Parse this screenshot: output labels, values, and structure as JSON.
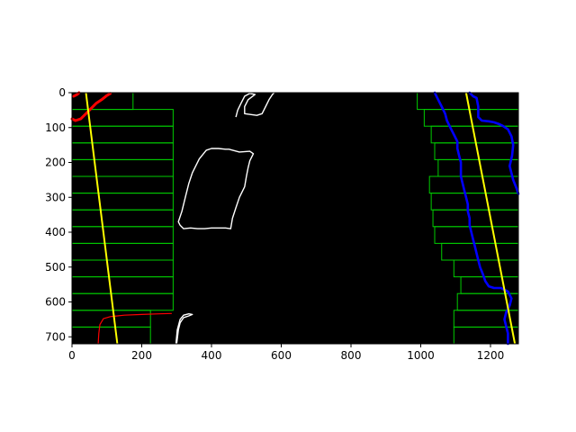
{
  "colors": {
    "background": "#000000",
    "window": "#00cc00",
    "fit_line": "#ffff00",
    "left_lane_pixels": "#ff0000",
    "right_lane_pixels": "#0000ff",
    "edges": "#ffffff",
    "axis": "#000000"
  },
  "chart_data": {
    "type": "scatter",
    "xlim": [
      0,
      1280
    ],
    "ylim": [
      720,
      0
    ],
    "x_ticks": [
      "0",
      "200",
      "400",
      "600",
      "800",
      "1000",
      "1200"
    ],
    "y_ticks": [
      "0",
      "100",
      "200",
      "300",
      "400",
      "500",
      "600",
      "700"
    ],
    "x_tick_values": [
      0,
      200,
      400,
      600,
      800,
      1000,
      1200
    ],
    "y_tick_values": [
      0,
      100,
      200,
      300,
      400,
      500,
      600,
      700
    ],
    "left_windows": [
      {
        "x1": 0,
        "x2": 175,
        "y1": 0,
        "y2": 48
      },
      {
        "x1": 0,
        "x2": 290,
        "y1": 48,
        "y2": 96
      },
      {
        "x1": 0,
        "x2": 290,
        "y1": 96,
        "y2": 144
      },
      {
        "x1": 0,
        "x2": 290,
        "y1": 144,
        "y2": 192
      },
      {
        "x1": 0,
        "x2": 290,
        "y1": 192,
        "y2": 240
      },
      {
        "x1": 0,
        "x2": 290,
        "y1": 240,
        "y2": 288
      },
      {
        "x1": 0,
        "x2": 290,
        "y1": 288,
        "y2": 336
      },
      {
        "x1": 0,
        "x2": 290,
        "y1": 336,
        "y2": 384
      },
      {
        "x1": 0,
        "x2": 290,
        "y1": 384,
        "y2": 432
      },
      {
        "x1": 0,
        "x2": 290,
        "y1": 432,
        "y2": 480
      },
      {
        "x1": 0,
        "x2": 290,
        "y1": 480,
        "y2": 528
      },
      {
        "x1": 0,
        "x2": 290,
        "y1": 528,
        "y2": 576
      },
      {
        "x1": 0,
        "x2": 290,
        "y1": 576,
        "y2": 624
      },
      {
        "x1": 0,
        "x2": 225,
        "y1": 624,
        "y2": 672
      },
      {
        "x1": 0,
        "x2": 225,
        "y1": 672,
        "y2": 720
      }
    ],
    "right_windows": [
      {
        "x1": 990,
        "x2": 1280,
        "y1": 0,
        "y2": 48
      },
      {
        "x1": 1010,
        "x2": 1280,
        "y1": 48,
        "y2": 96
      },
      {
        "x1": 1030,
        "x2": 1280,
        "y1": 96,
        "y2": 144
      },
      {
        "x1": 1040,
        "x2": 1280,
        "y1": 144,
        "y2": 192
      },
      {
        "x1": 1050,
        "x2": 1280,
        "y1": 192,
        "y2": 240
      },
      {
        "x1": 1025,
        "x2": 1280,
        "y1": 240,
        "y2": 288
      },
      {
        "x1": 1030,
        "x2": 1280,
        "y1": 288,
        "y2": 336
      },
      {
        "x1": 1035,
        "x2": 1280,
        "y1": 336,
        "y2": 384
      },
      {
        "x1": 1040,
        "x2": 1280,
        "y1": 384,
        "y2": 432
      },
      {
        "x1": 1060,
        "x2": 1280,
        "y1": 432,
        "y2": 480
      },
      {
        "x1": 1095,
        "x2": 1280,
        "y1": 480,
        "y2": 528
      },
      {
        "x1": 1115,
        "x2": 1280,
        "y1": 528,
        "y2": 576
      },
      {
        "x1": 1105,
        "x2": 1280,
        "y1": 576,
        "y2": 624
      },
      {
        "x1": 1095,
        "x2": 1280,
        "y1": 624,
        "y2": 672
      },
      {
        "x1": 1095,
        "x2": 1280,
        "y1": 672,
        "y2": 720
      }
    ],
    "left_fit": [
      [
        40,
        0
      ],
      [
        130,
        720
      ]
    ],
    "right_fit": [
      [
        1130,
        0
      ],
      [
        1270,
        720
      ]
    ],
    "left_lane_pixels": [
      [
        [
          5,
          10
        ],
        [
          15,
          5
        ],
        [
          20,
          0
        ]
      ],
      [
        [
          0,
          75
        ],
        [
          10,
          80
        ],
        [
          25,
          75
        ],
        [
          40,
          60
        ],
        [
          55,
          45
        ],
        [
          70,
          30
        ],
        [
          85,
          20
        ],
        [
          100,
          8
        ],
        [
          110,
          2
        ]
      ],
      [
        [
          75,
          720
        ],
        [
          77,
          690
        ],
        [
          80,
          665
        ],
        [
          90,
          648
        ],
        [
          110,
          642
        ],
        [
          150,
          638
        ],
        [
          200,
          636
        ],
        [
          250,
          634
        ],
        [
          285,
          633
        ]
      ]
    ],
    "right_lane_pixels": [
      [
        [
          1040,
          0
        ],
        [
          1050,
          20
        ],
        [
          1060,
          40
        ],
        [
          1070,
          60
        ],
        [
          1075,
          80
        ],
        [
          1085,
          100
        ],
        [
          1095,
          120
        ],
        [
          1105,
          140
        ],
        [
          1105,
          160
        ],
        [
          1110,
          180
        ],
        [
          1115,
          200
        ],
        [
          1115,
          220
        ],
        [
          1115,
          240
        ],
        [
          1120,
          260
        ],
        [
          1125,
          280
        ],
        [
          1130,
          300
        ],
        [
          1135,
          320
        ],
        [
          1135,
          340
        ],
        [
          1140,
          360
        ],
        [
          1140,
          380
        ],
        [
          1145,
          400
        ],
        [
          1150,
          420
        ],
        [
          1155,
          440
        ],
        [
          1160,
          460
        ],
        [
          1165,
          480
        ],
        [
          1170,
          500
        ],
        [
          1178,
          520
        ],
        [
          1185,
          540
        ],
        [
          1195,
          555
        ],
        [
          1210,
          560
        ],
        [
          1230,
          560
        ],
        [
          1250,
          570
        ],
        [
          1260,
          590
        ],
        [
          1255,
          610
        ],
        [
          1245,
          630
        ],
        [
          1240,
          650
        ],
        [
          1245,
          670
        ],
        [
          1250,
          690
        ],
        [
          1250,
          710
        ],
        [
          1250,
          720
        ]
      ],
      [
        [
          1140,
          0
        ],
        [
          1150,
          10
        ],
        [
          1160,
          15
        ],
        [
          1165,
          40
        ],
        [
          1165,
          70
        ],
        [
          1175,
          80
        ],
        [
          1195,
          82
        ],
        [
          1210,
          85
        ],
        [
          1225,
          90
        ],
        [
          1235,
          95
        ],
        [
          1250,
          105
        ],
        [
          1260,
          125
        ],
        [
          1265,
          150
        ],
        [
          1262,
          180
        ],
        [
          1255,
          210
        ],
        [
          1265,
          250
        ],
        [
          1275,
          275
        ],
        [
          1280,
          290
        ]
      ]
    ],
    "edge_contours": [
      [
        [
          300,
          720
        ],
        [
          305,
          680
        ],
        [
          310,
          660
        ],
        [
          320,
          645
        ],
        [
          335,
          640
        ],
        [
          345,
          636
        ],
        [
          335,
          634
        ],
        [
          320,
          638
        ],
        [
          310,
          650
        ],
        [
          302,
          680
        ],
        [
          298,
          720
        ]
      ],
      [
        [
          470,
          70
        ],
        [
          475,
          50
        ],
        [
          485,
          30
        ],
        [
          495,
          10
        ],
        [
          510,
          2
        ],
        [
          525,
          5
        ],
        [
          505,
          20
        ],
        [
          495,
          40
        ],
        [
          495,
          60
        ],
        [
          530,
          65
        ],
        [
          545,
          60
        ],
        [
          555,
          40
        ],
        [
          565,
          20
        ],
        [
          575,
          5
        ],
        [
          580,
          0
        ]
      ],
      [
        [
          310,
          380
        ],
        [
          305,
          370
        ],
        [
          315,
          340
        ],
        [
          325,
          300
        ],
        [
          335,
          260
        ],
        [
          345,
          230
        ],
        [
          365,
          190
        ],
        [
          385,
          165
        ],
        [
          400,
          160
        ],
        [
          420,
          160
        ],
        [
          440,
          162
        ],
        [
          450,
          162
        ],
        [
          480,
          170
        ],
        [
          510,
          168
        ],
        [
          520,
          175
        ],
        [
          510,
          195
        ],
        [
          505,
          215
        ],
        [
          500,
          240
        ],
        [
          495,
          270
        ],
        [
          480,
          300
        ],
        [
          470,
          330
        ],
        [
          460,
          360
        ],
        [
          455,
          390
        ],
        [
          440,
          388
        ],
        [
          420,
          388
        ],
        [
          400,
          388
        ],
        [
          380,
          390
        ],
        [
          360,
          390
        ],
        [
          340,
          388
        ],
        [
          320,
          390
        ],
        [
          310,
          380
        ]
      ]
    ]
  }
}
